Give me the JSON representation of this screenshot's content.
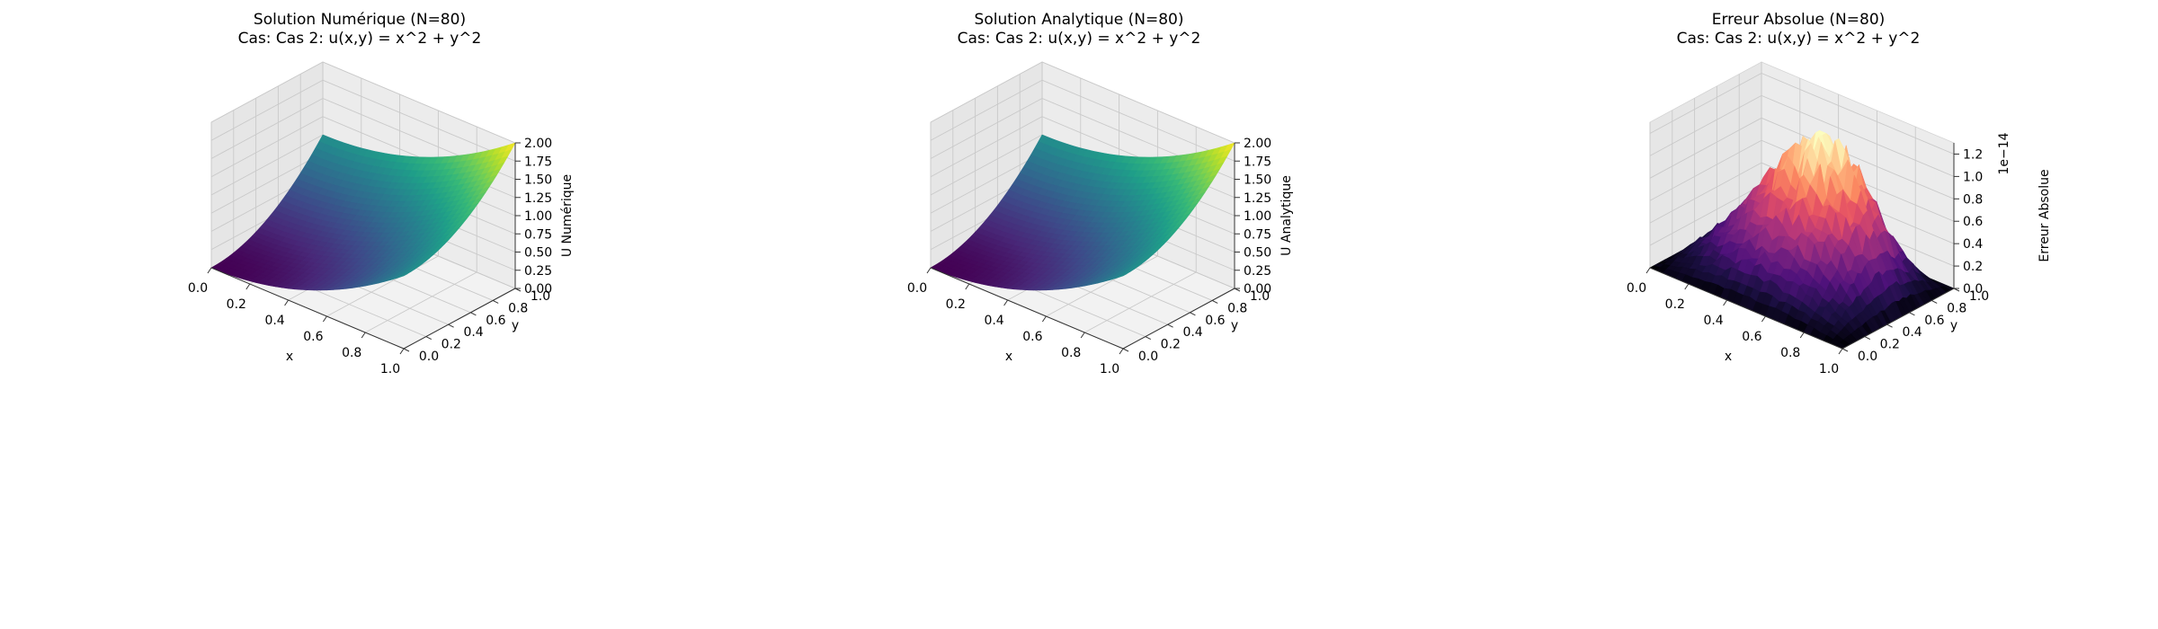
{
  "chart_data": [
    {
      "type": "surface3d",
      "title": "Solution Numérique (N=80)",
      "subtitle": "Cas: Cas 2: u(x,y) = x^2 + y^2",
      "xlabel": "x",
      "ylabel": "y",
      "zlabel": "U Numérique",
      "function": "x^2 + y^2",
      "grid_n": 80,
      "xlim": [
        0,
        1
      ],
      "ylim": [
        0,
        1
      ],
      "zlim": [
        0,
        2
      ],
      "xticks": [
        "0.0",
        "0.2",
        "0.4",
        "0.6",
        "0.8",
        "1.0"
      ],
      "yticks": [
        "0.0",
        "0.2",
        "0.4",
        "0.6",
        "0.8",
        "1.0"
      ],
      "zticks": [
        "0.00",
        "0.25",
        "0.50",
        "0.75",
        "1.00",
        "1.25",
        "1.50",
        "1.75",
        "2.00"
      ],
      "z_offset_label": "",
      "colormap": "viridis",
      "grid": true
    },
    {
      "type": "surface3d",
      "title": "Solution Analytique (N=80)",
      "subtitle": "Cas: Cas 2: u(x,y) = x^2 + y^2",
      "xlabel": "x",
      "ylabel": "y",
      "zlabel": "U Analytique",
      "function": "x^2 + y^2",
      "grid_n": 80,
      "xlim": [
        0,
        1
      ],
      "ylim": [
        0,
        1
      ],
      "zlim": [
        0,
        2
      ],
      "xticks": [
        "0.0",
        "0.2",
        "0.4",
        "0.6",
        "0.8",
        "1.0"
      ],
      "yticks": [
        "0.0",
        "0.2",
        "0.4",
        "0.6",
        "0.8",
        "1.0"
      ],
      "zticks": [
        "0.00",
        "0.25",
        "0.50",
        "0.75",
        "1.00",
        "1.25",
        "1.50",
        "1.75",
        "2.00"
      ],
      "z_offset_label": "",
      "colormap": "viridis",
      "grid": true
    },
    {
      "type": "surface3d",
      "title": "Erreur Absolue (N=80)",
      "subtitle": "Cas: Cas 2: u(x,y) = x^2 + y^2",
      "xlabel": "x",
      "ylabel": "y",
      "zlabel": "Erreur Absolue",
      "function": "absolute error (noisy, peak ≈ 1.3e-14 near x≈0.6, y≈0.6, zero on boundary)",
      "grid_n": 80,
      "xlim": [
        0,
        1
      ],
      "ylim": [
        0,
        1
      ],
      "zlim": [
        0,
        1.3
      ],
      "xticks": [
        "0.0",
        "0.2",
        "0.4",
        "0.6",
        "0.8",
        "1.0"
      ],
      "yticks": [
        "0.0",
        "0.2",
        "0.4",
        "0.6",
        "0.8",
        "1.0"
      ],
      "zticks": [
        "0.0",
        "0.2",
        "0.4",
        "0.6",
        "0.8",
        "1.0",
        "1.2"
      ],
      "z_offset_label": "1e−14",
      "colormap": "magma",
      "grid": true
    }
  ]
}
